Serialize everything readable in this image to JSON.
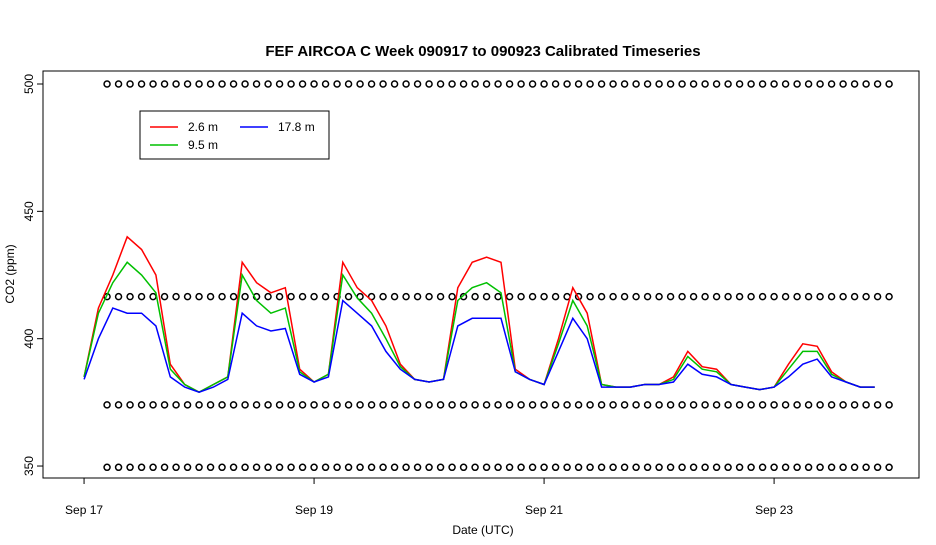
{
  "chart_data": {
    "type": "line",
    "title": "FEF AIRCOA C  Week 090917 to 090923  Calibrated Timeseries",
    "x_label": "Date (UTC)",
    "y_label": "CO2 (ppm)",
    "x": [
      17.0,
      17.125,
      17.25,
      17.375,
      17.5,
      17.625,
      17.75,
      17.875,
      18.0,
      18.125,
      18.25,
      18.375,
      18.5,
      18.625,
      18.75,
      18.875,
      19.0,
      19.125,
      19.25,
      19.375,
      19.5,
      19.625,
      19.75,
      19.875,
      20.0,
      20.125,
      20.25,
      20.375,
      20.5,
      20.625,
      20.75,
      20.875,
      21.0,
      21.125,
      21.25,
      21.375,
      21.5,
      21.625,
      21.75,
      21.875,
      22.0,
      22.125,
      22.25,
      22.375,
      22.5,
      22.625,
      22.75,
      22.875,
      23.0,
      23.125,
      23.25,
      23.375,
      23.5,
      23.625,
      23.75,
      23.875
    ],
    "series": [
      {
        "name": "2.6 m",
        "color": "#ff0000",
        "values": [
          385,
          412,
          425,
          440,
          435,
          425,
          390,
          382,
          379,
          382,
          385,
          430,
          422,
          418,
          420,
          388,
          383,
          386,
          430,
          420,
          415,
          405,
          390,
          384,
          383,
          384,
          420,
          430,
          432,
          430,
          388,
          384,
          382,
          400,
          420,
          410,
          382,
          381,
          381,
          382,
          382,
          385,
          395,
          389,
          388,
          382,
          381,
          380,
          381,
          390,
          398,
          397,
          387,
          383,
          381,
          381
        ]
      },
      {
        "name": "9.5 m",
        "color": "#00c000",
        "values": [
          385,
          410,
          422,
          430,
          425,
          418,
          388,
          382,
          379,
          382,
          385,
          425,
          415,
          410,
          412,
          387,
          383,
          386,
          425,
          416,
          410,
          400,
          389,
          384,
          383,
          384,
          415,
          420,
          422,
          418,
          387,
          384,
          382,
          398,
          415,
          405,
          382,
          381,
          381,
          382,
          382,
          384,
          393,
          388,
          387,
          382,
          381,
          380,
          381,
          388,
          395,
          395,
          386,
          383,
          381,
          381
        ]
      },
      {
        "name": "17.8 m",
        "color": "#0000ff",
        "values": [
          384,
          400,
          412,
          410,
          410,
          405,
          385,
          381,
          379,
          381,
          384,
          410,
          405,
          403,
          404,
          386,
          383,
          385,
          415,
          410,
          405,
          395,
          388,
          384,
          383,
          384,
          405,
          408,
          408,
          408,
          387,
          384,
          382,
          395,
          408,
          400,
          381,
          381,
          381,
          382,
          382,
          383,
          390,
          386,
          385,
          382,
          381,
          380,
          381,
          385,
          390,
          392,
          385,
          383,
          381,
          381
        ]
      }
    ],
    "markers": {
      "levels": [
        500,
        416.5,
        374,
        349.5
      ],
      "x": [
        17.2,
        17.3,
        17.4,
        17.5,
        17.6,
        17.7,
        17.8,
        17.9,
        18.0,
        18.1,
        18.2,
        18.3,
        18.4,
        18.5,
        18.6,
        18.7,
        18.8,
        18.9,
        19.0,
        19.1,
        19.2,
        19.3,
        19.4,
        19.5,
        19.6,
        19.7,
        19.8,
        19.9,
        20.0,
        20.1,
        20.2,
        20.3,
        20.4,
        20.5,
        20.6,
        20.7,
        20.8,
        20.9,
        21.0,
        21.1,
        21.2,
        21.3,
        21.4,
        21.5,
        21.6,
        21.7,
        21.8,
        21.9,
        22.0,
        22.1,
        22.2,
        22.3,
        22.4,
        22.5,
        22.6,
        22.7,
        22.8,
        22.9,
        23.0,
        23.1,
        23.2,
        23.3,
        23.4,
        23.5,
        23.6,
        23.7,
        23.8,
        23.9,
        24.0
      ]
    },
    "xlim": [
      16.643,
      24.26
    ],
    "ylim": [
      345.3,
      505.1
    ],
    "xticks": [
      {
        "value": 17,
        "label": "Sep 17"
      },
      {
        "value": 19,
        "label": "Sep 19"
      },
      {
        "value": 21,
        "label": "Sep 21"
      },
      {
        "value": 23,
        "label": "Sep 23"
      }
    ],
    "yticks": [
      350,
      400,
      450,
      500
    ],
    "grid": false,
    "legend": "upper left"
  }
}
